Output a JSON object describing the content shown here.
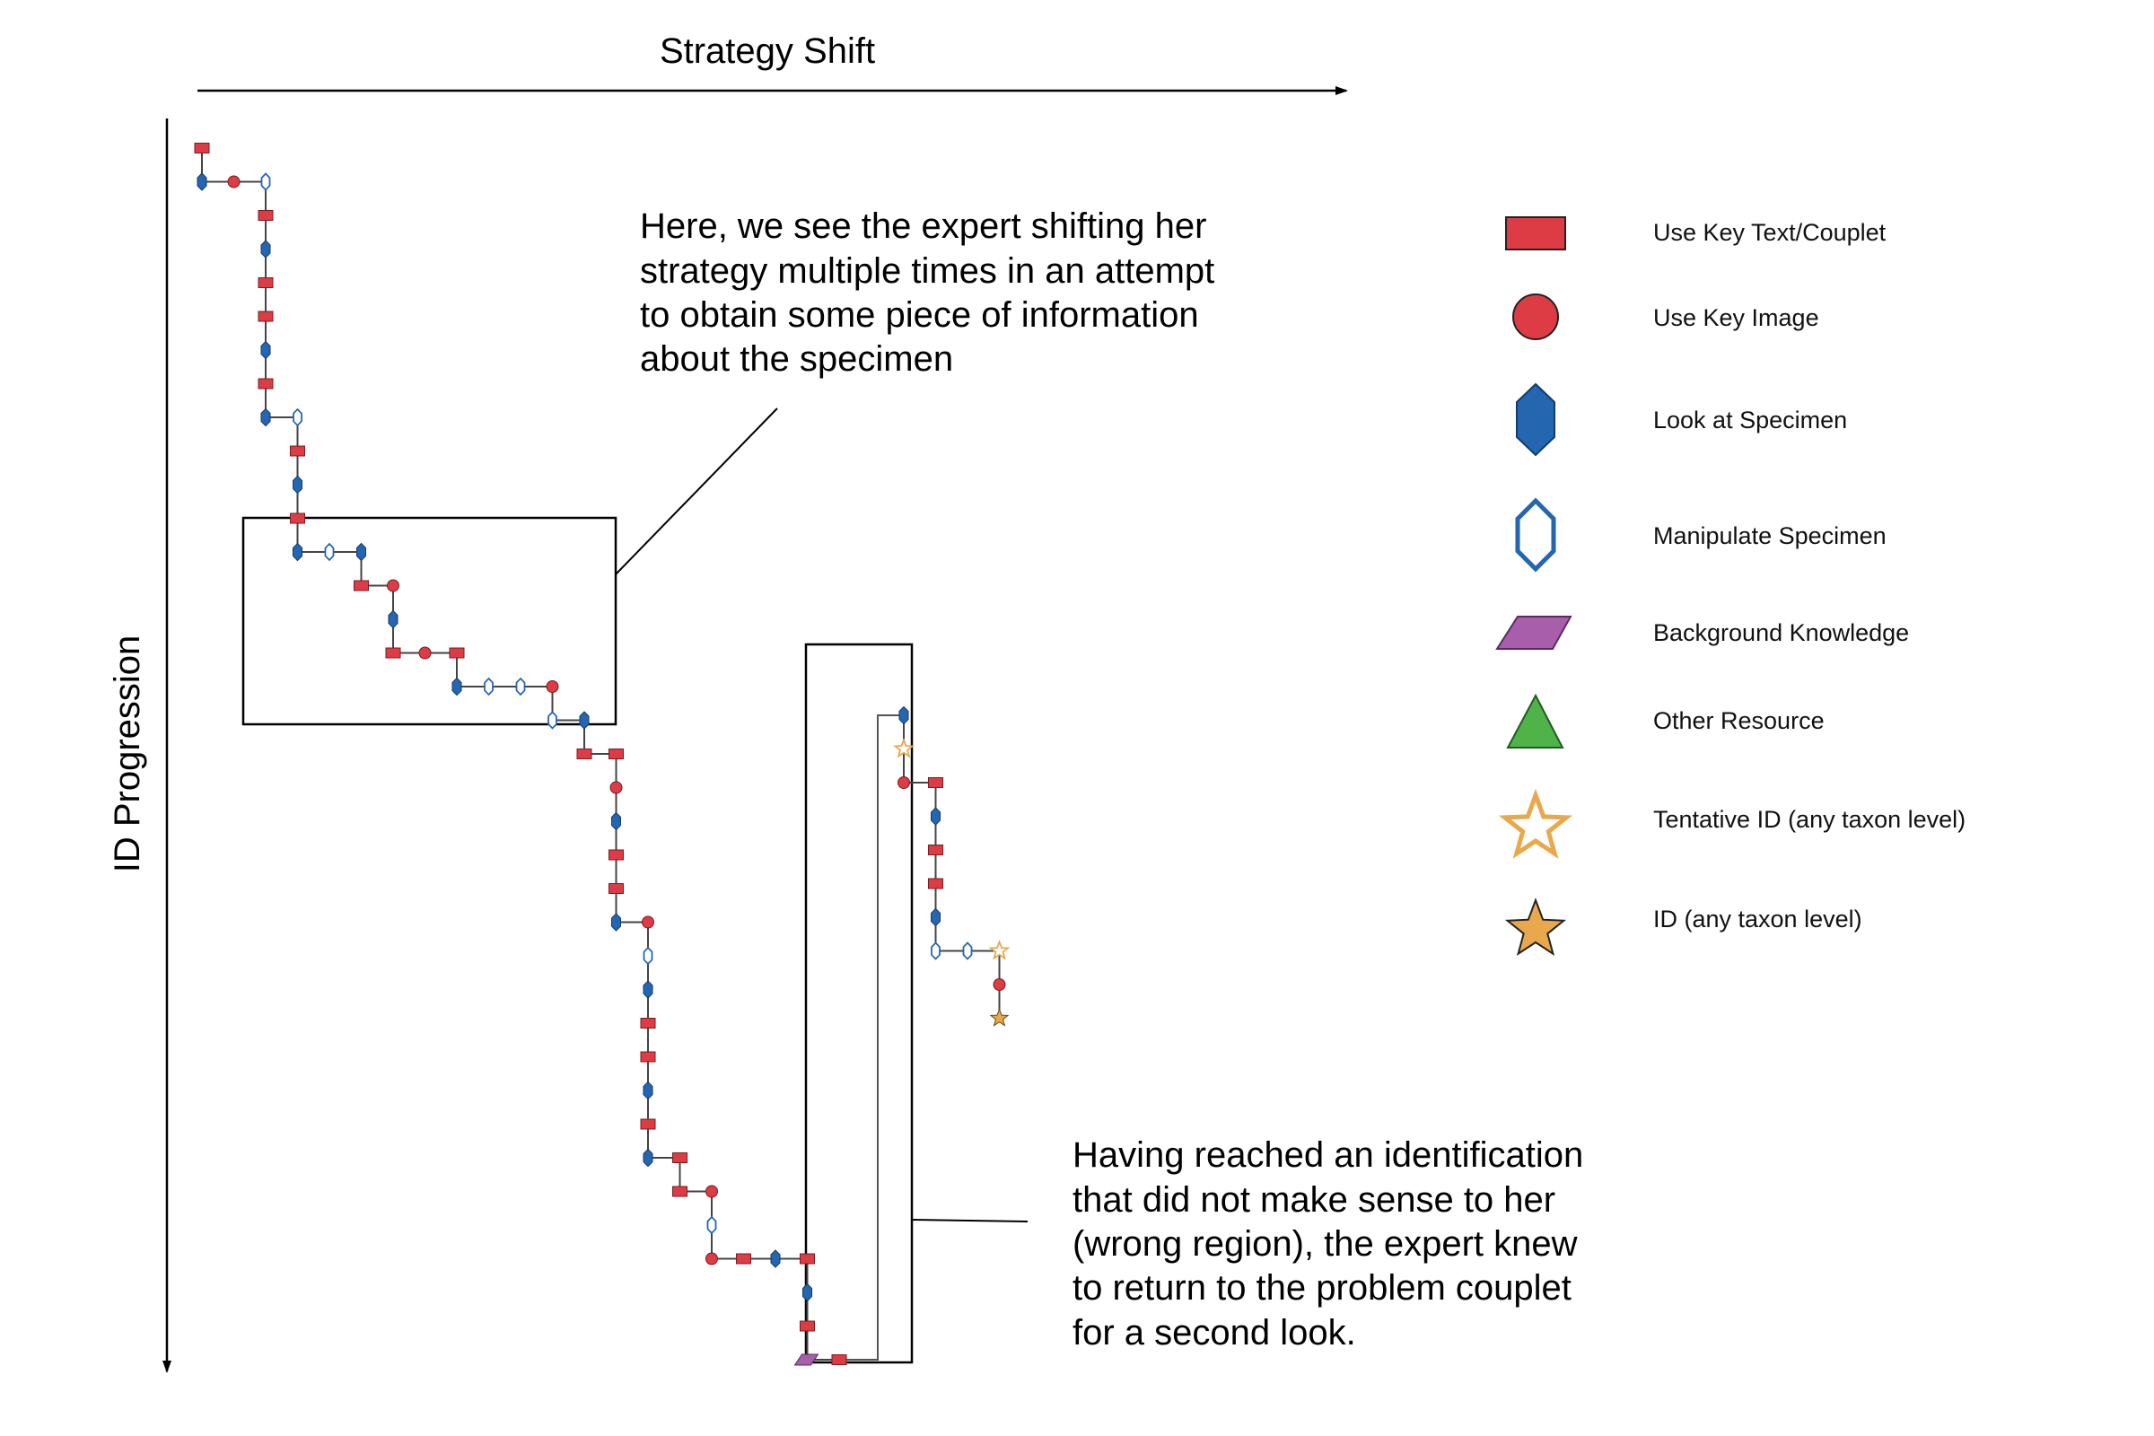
{
  "axes": {
    "x_title": "Strategy Shift",
    "y_title": "ID Progression"
  },
  "annotations": {
    "top": [
      "Here, we see the expert shifting her",
      "strategy multiple times in an attempt",
      "to obtain some piece of information",
      "about the specimen"
    ],
    "bottom": [
      "Having reached an identification",
      "that did not make sense to her",
      "(wrong region), the expert knew",
      "to return to the problem couplet",
      "for a second look."
    ]
  },
  "legend": [
    {
      "key": "key_text",
      "label": "Use Key Text/Couplet"
    },
    {
      "key": "key_image",
      "label": "Use Key Image"
    },
    {
      "key": "look",
      "label": "Look at Specimen"
    },
    {
      "key": "manipulate",
      "label": "Manipulate Specimen"
    },
    {
      "key": "background",
      "label": "Background Knowledge"
    },
    {
      "key": "other",
      "label": "Other Resource"
    },
    {
      "key": "tentative",
      "label": "Tentative ID (any taxon level)"
    },
    {
      "key": "id",
      "label": "ID (any taxon level)"
    }
  ],
  "colors": {
    "key_text": "#dd3c44",
    "key_image": "#dd3c44",
    "look": "#2566b0",
    "manipulate": "#2566b0",
    "background": "#a85eab",
    "other": "#4fb34a",
    "tentative": "#e9a84b",
    "id": "#e9a84b"
  },
  "sequence": [
    "key_text",
    "look",
    "key_image",
    "manipulate",
    "key_text",
    "look",
    "key_text",
    "key_text",
    "look",
    "key_text",
    "look",
    "manipulate",
    "key_text",
    "look",
    "key_text",
    "look",
    "manipulate",
    "look",
    "key_text",
    "key_image",
    "look",
    "key_text",
    "key_image",
    "key_text",
    "look",
    "manipulate",
    "manipulate",
    "key_image",
    "manipulate",
    "look",
    "key_text",
    "key_text",
    "key_image",
    "look",
    "key_text",
    "key_text",
    "look",
    "key_image",
    "manipulate",
    "look",
    "key_text",
    "key_text",
    "look",
    "key_text",
    "look",
    "key_text",
    "key_text",
    "key_image",
    "manipulate",
    "key_image",
    "key_text",
    "look",
    "key_text",
    "look",
    "key_text",
    "background",
    "key_text",
    "look",
    "tentative",
    "key_image",
    "key_text",
    "look",
    "key_text",
    "key_text",
    "look",
    "manipulate",
    "manipulate",
    "tentative",
    "key_image",
    "id"
  ],
  "return_loop": {
    "from_step": 56,
    "to_step": 57
  }
}
